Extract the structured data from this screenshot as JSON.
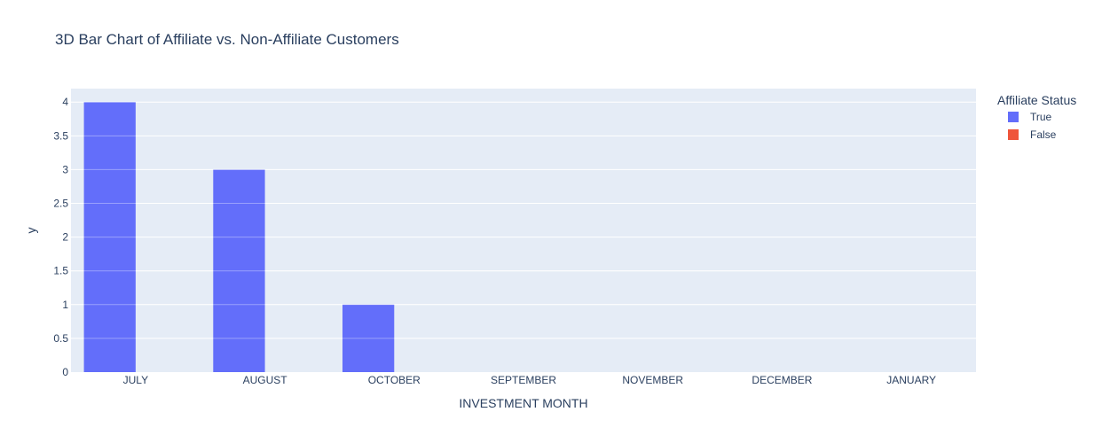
{
  "chart_data": {
    "type": "bar",
    "title": "3D Bar Chart of Affiliate vs. Non-Affiliate Customers",
    "xlabel": "INVESTMENT MONTH",
    "ylabel": "y",
    "categories": [
      "JULY",
      "AUGUST",
      "OCTOBER",
      "SEPTEMBER",
      "NOVEMBER",
      "DECEMBER",
      "JANUARY"
    ],
    "series": [
      {
        "name": "True",
        "values": [
          4,
          3,
          1,
          0,
          0,
          0,
          0
        ],
        "color": "#636efa"
      },
      {
        "name": "False",
        "values": [
          0,
          0,
          0,
          0,
          0,
          0,
          0
        ],
        "color": "#ef553b"
      }
    ],
    "ylim": [
      0,
      4.2
    ],
    "yticks": [
      0,
      0.5,
      1,
      1.5,
      2,
      2.5,
      3,
      3.5,
      4
    ],
    "ytick_labels": [
      "0",
      "0.5",
      "1",
      "1.5",
      "2",
      "2.5",
      "3",
      "3.5",
      "4"
    ],
    "grid": true,
    "plot_bgcolor": "#e5ecf6",
    "legend": {
      "title": "Affiliate Status",
      "placement": "top-right"
    }
  }
}
